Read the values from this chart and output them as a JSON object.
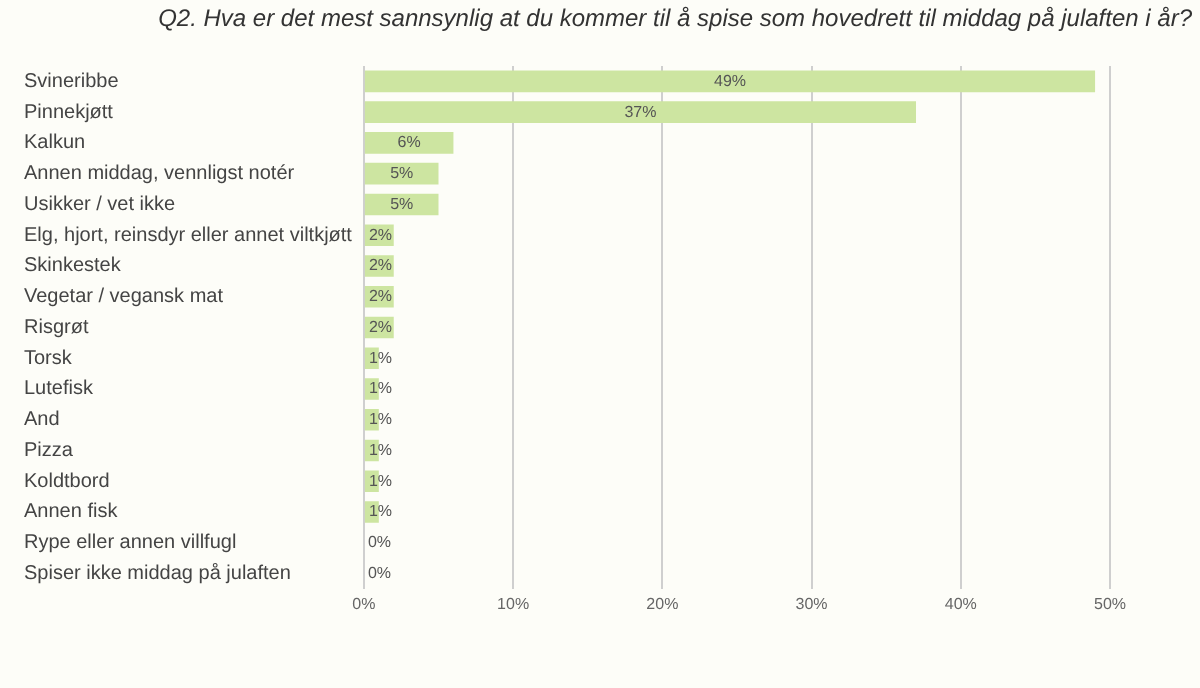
{
  "chart_data": {
    "type": "bar",
    "orientation": "horizontal",
    "title": "Q2. Hva er det mest sannsynlig at du kommer til å spise som hovedrett til middag på julaften i år?",
    "categories": [
      "Svineribbe",
      "Pinnekjøtt",
      "Kalkun",
      "Annen middag, vennligst notér",
      "Usikker / vet ikke",
      "Elg, hjort, reinsdyr eller annet viltkjøtt",
      "Skinkestek",
      "Vegetar / vegansk mat",
      "Risgrøt",
      "Torsk",
      "Lutefisk",
      "And",
      "Pizza",
      "Koldtbord",
      "Annen fisk",
      "Rype eller annen villfugl",
      "Spiser ikke middag på julaften"
    ],
    "values": [
      49,
      37,
      6,
      5,
      5,
      2,
      2,
      2,
      2,
      1,
      1,
      1,
      1,
      1,
      1,
      0,
      0
    ],
    "color": "#cde5a1",
    "value_labels": [
      "49%",
      "37%",
      "6%",
      "5%",
      "5%",
      "2%",
      "2%",
      "2%",
      "2%",
      "1%",
      "1%",
      "1%",
      "1%",
      "1%",
      "1%",
      "0%",
      "0%"
    ],
    "xlim": [
      0,
      50
    ],
    "xticks": [
      {
        "value": 0,
        "label": "0%"
      },
      {
        "value": 10,
        "label": "10%"
      },
      {
        "value": 20,
        "label": "20%"
      },
      {
        "value": 30,
        "label": "30%"
      },
      {
        "value": 40,
        "label": "40%"
      },
      {
        "value": 50,
        "label": "50%"
      }
    ],
    "grid": "x"
  }
}
